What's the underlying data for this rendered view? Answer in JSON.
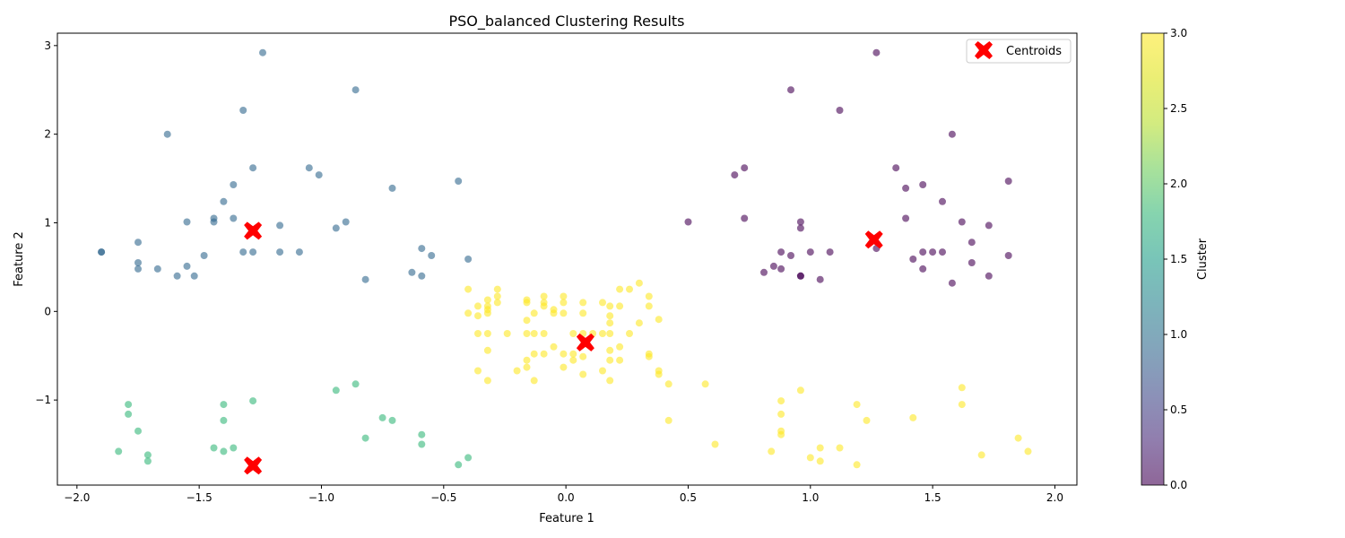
{
  "chart_data": {
    "type": "scatter",
    "title": "PSO_balanced Clustering Results",
    "xlabel": "Feature 1",
    "ylabel": "Feature 2",
    "xlim": [
      -2.08,
      2.09
    ],
    "ylim": [
      -1.96,
      3.14
    ],
    "x_ticks": [
      -2.0,
      -1.5,
      -1.0,
      -0.5,
      0.0,
      0.5,
      1.0,
      1.5,
      2.0
    ],
    "x_tick_labels": [
      "−2.0",
      "−1.5",
      "−1.0",
      "−0.5",
      "0.0",
      "0.5",
      "1.0",
      "1.5",
      "2.0"
    ],
    "y_ticks": [
      -1,
      0,
      1,
      2,
      3
    ],
    "y_tick_labels": [
      "−1",
      "0",
      "1",
      "2",
      "3"
    ],
    "grid": false,
    "legend": {
      "position": "top-right",
      "entries": [
        "Centroids"
      ]
    },
    "colorbar": {
      "label": "Cluster",
      "range": [
        0.0,
        3.0
      ],
      "ticks": [
        0.0,
        0.5,
        1.0,
        1.5,
        2.0,
        2.5,
        3.0
      ],
      "tick_labels": [
        "0.0",
        "0.5",
        "1.0",
        "1.5",
        "2.0",
        "2.5",
        "3.0"
      ],
      "colormap": "viridis"
    },
    "marker_alpha": 0.6,
    "cluster_colors": [
      "#440154",
      "#31688e",
      "#35b779",
      "#fde725"
    ],
    "centroid_color": "#ff0000",
    "series": [
      {
        "cluster": 0,
        "points": [
          [
            0.5,
            1.01
          ],
          [
            0.69,
            1.54
          ],
          [
            0.73,
            1.62
          ],
          [
            0.73,
            1.05
          ],
          [
            0.81,
            0.44
          ],
          [
            0.85,
            0.51
          ],
          [
            0.88,
            0.67
          ],
          [
            0.88,
            0.48
          ],
          [
            0.92,
            2.5
          ],
          [
            0.92,
            0.63
          ],
          [
            0.96,
            1.01
          ],
          [
            0.96,
            0.94
          ],
          [
            0.96,
            0.4
          ],
          [
            0.96,
            0.4
          ],
          [
            1.0,
            0.67
          ],
          [
            1.04,
            0.36
          ],
          [
            1.08,
            0.67
          ],
          [
            1.12,
            2.27
          ],
          [
            1.27,
            2.92
          ],
          [
            1.27,
            0.71
          ],
          [
            1.35,
            1.62
          ],
          [
            1.39,
            1.39
          ],
          [
            1.39,
            1.05
          ],
          [
            1.42,
            0.59
          ],
          [
            1.46,
            1.43
          ],
          [
            1.46,
            0.67
          ],
          [
            1.46,
            0.48
          ],
          [
            1.5,
            0.67
          ],
          [
            1.54,
            1.24
          ],
          [
            1.54,
            0.67
          ],
          [
            1.58,
            2.0
          ],
          [
            1.58,
            0.32
          ],
          [
            1.62,
            1.01
          ],
          [
            1.66,
            0.78
          ],
          [
            1.66,
            0.55
          ],
          [
            1.73,
            0.97
          ],
          [
            1.73,
            0.4
          ],
          [
            1.81,
            1.47
          ],
          [
            1.81,
            0.63
          ]
        ]
      },
      {
        "cluster": 1,
        "points": [
          [
            -1.9,
            0.67
          ],
          [
            -1.9,
            0.67
          ],
          [
            -1.75,
            0.78
          ],
          [
            -1.75,
            0.55
          ],
          [
            -1.75,
            0.48
          ],
          [
            -1.67,
            0.48
          ],
          [
            -1.63,
            2.0
          ],
          [
            -1.59,
            0.4
          ],
          [
            -1.55,
            1.01
          ],
          [
            -1.55,
            0.51
          ],
          [
            -1.52,
            0.4
          ],
          [
            -1.48,
            0.63
          ],
          [
            -1.44,
            1.05
          ],
          [
            -1.44,
            1.01
          ],
          [
            -1.4,
            1.24
          ],
          [
            -1.36,
            1.43
          ],
          [
            -1.36,
            1.05
          ],
          [
            -1.32,
            2.27
          ],
          [
            -1.32,
            0.67
          ],
          [
            -1.28,
            1.62
          ],
          [
            -1.28,
            0.67
          ],
          [
            -1.24,
            2.92
          ],
          [
            -1.17,
            0.97
          ],
          [
            -1.17,
            0.67
          ],
          [
            -1.09,
            0.67
          ],
          [
            -1.05,
            1.62
          ],
          [
            -1.01,
            1.54
          ],
          [
            -0.94,
            0.94
          ],
          [
            -0.9,
            1.01
          ],
          [
            -0.86,
            2.5
          ],
          [
            -0.82,
            0.36
          ],
          [
            -0.71,
            1.39
          ],
          [
            -0.63,
            0.44
          ],
          [
            -0.59,
            0.71
          ],
          [
            -0.59,
            0.4
          ],
          [
            -0.55,
            0.63
          ],
          [
            -0.44,
            1.47
          ],
          [
            -0.4,
            0.59
          ]
        ]
      },
      {
        "cluster": 2,
        "points": [
          [
            -1.83,
            -1.58
          ],
          [
            -1.79,
            -1.05
          ],
          [
            -1.79,
            -1.16
          ],
          [
            -1.75,
            -1.35
          ],
          [
            -1.71,
            -1.62
          ],
          [
            -1.71,
            -1.69
          ],
          [
            -1.44,
            -1.54
          ],
          [
            -1.4,
            -1.05
          ],
          [
            -1.4,
            -1.23
          ],
          [
            -1.4,
            -1.58
          ],
          [
            -1.36,
            -1.54
          ],
          [
            -1.28,
            -1.01
          ],
          [
            -0.94,
            -0.89
          ],
          [
            -0.86,
            -0.82
          ],
          [
            -0.82,
            -1.43
          ],
          [
            -0.75,
            -1.2
          ],
          [
            -0.71,
            -1.23
          ],
          [
            -0.59,
            -1.39
          ],
          [
            -0.59,
            -1.5
          ],
          [
            -0.44,
            -1.73
          ],
          [
            -0.4,
            -1.65
          ]
        ]
      },
      {
        "cluster": 3,
        "points": [
          [
            -0.4,
            0.25
          ],
          [
            -0.4,
            -0.02
          ],
          [
            -0.36,
            0.06
          ],
          [
            -0.36,
            -0.05
          ],
          [
            -0.36,
            -0.25
          ],
          [
            -0.36,
            -0.67
          ],
          [
            -0.32,
            0.13
          ],
          [
            -0.32,
            0.06
          ],
          [
            -0.32,
            0.02
          ],
          [
            -0.32,
            -0.02
          ],
          [
            -0.32,
            -0.25
          ],
          [
            -0.32,
            -0.44
          ],
          [
            -0.32,
            -0.78
          ],
          [
            -0.28,
            0.25
          ],
          [
            -0.28,
            0.17
          ],
          [
            -0.28,
            0.1
          ],
          [
            -0.24,
            -0.25
          ],
          [
            -0.2,
            -0.67
          ],
          [
            -0.16,
            0.13
          ],
          [
            -0.16,
            0.1
          ],
          [
            -0.16,
            -0.1
          ],
          [
            -0.16,
            -0.25
          ],
          [
            -0.16,
            -0.55
          ],
          [
            -0.16,
            -0.63
          ],
          [
            -0.13,
            -0.02
          ],
          [
            -0.13,
            -0.25
          ],
          [
            -0.13,
            -0.48
          ],
          [
            -0.13,
            -0.78
          ],
          [
            -0.09,
            0.17
          ],
          [
            -0.09,
            0.1
          ],
          [
            -0.09,
            0.06
          ],
          [
            -0.09,
            -0.25
          ],
          [
            -0.09,
            -0.48
          ],
          [
            -0.05,
            0.02
          ],
          [
            -0.05,
            -0.02
          ],
          [
            -0.05,
            -0.4
          ],
          [
            -0.01,
            0.17
          ],
          [
            -0.01,
            0.1
          ],
          [
            -0.01,
            -0.02
          ],
          [
            -0.01,
            -0.48
          ],
          [
            -0.01,
            -0.63
          ],
          [
            0.03,
            -0.25
          ],
          [
            0.03,
            -0.48
          ],
          [
            0.03,
            -0.55
          ],
          [
            0.07,
            0.1
          ],
          [
            0.07,
            -0.02
          ],
          [
            0.07,
            -0.25
          ],
          [
            0.07,
            -0.51
          ],
          [
            0.07,
            -0.71
          ],
          [
            0.11,
            -0.25
          ],
          [
            0.15,
            0.1
          ],
          [
            0.15,
            -0.25
          ],
          [
            0.15,
            -0.67
          ],
          [
            0.18,
            0.06
          ],
          [
            0.18,
            -0.05
          ],
          [
            0.18,
            -0.13
          ],
          [
            0.18,
            -0.25
          ],
          [
            0.18,
            -0.44
          ],
          [
            0.18,
            -0.55
          ],
          [
            0.18,
            -0.78
          ],
          [
            0.22,
            0.25
          ],
          [
            0.22,
            0.06
          ],
          [
            0.22,
            -0.4
          ],
          [
            0.22,
            -0.55
          ],
          [
            0.26,
            0.25
          ],
          [
            0.26,
            -0.25
          ],
          [
            0.3,
            0.32
          ],
          [
            0.3,
            -0.13
          ],
          [
            0.34,
            0.17
          ],
          [
            0.34,
            0.06
          ],
          [
            0.34,
            -0.48
          ],
          [
            0.34,
            -0.51
          ],
          [
            0.38,
            -0.09
          ],
          [
            0.38,
            -0.67
          ],
          [
            0.38,
            -0.71
          ],
          [
            0.42,
            -0.82
          ],
          [
            0.42,
            -1.23
          ],
          [
            0.57,
            -0.82
          ],
          [
            0.61,
            -1.5
          ],
          [
            0.84,
            -1.58
          ],
          [
            0.88,
            -1.01
          ],
          [
            0.88,
            -1.16
          ],
          [
            0.88,
            -1.35
          ],
          [
            0.88,
            -1.39
          ],
          [
            0.96,
            -0.89
          ],
          [
            1.0,
            -1.65
          ],
          [
            1.04,
            -1.54
          ],
          [
            1.04,
            -1.69
          ],
          [
            1.12,
            -1.54
          ],
          [
            1.19,
            -1.05
          ],
          [
            1.19,
            -1.73
          ],
          [
            1.23,
            -1.23
          ],
          [
            1.42,
            -1.2
          ],
          [
            1.62,
            -0.86
          ],
          [
            1.62,
            -1.05
          ],
          [
            1.7,
            -1.62
          ],
          [
            1.85,
            -1.43
          ],
          [
            1.89,
            -1.58
          ]
        ]
      }
    ],
    "centroids": [
      [
        -1.28,
        0.91
      ],
      [
        0.08,
        -0.35
      ],
      [
        1.26,
        0.81
      ],
      [
        -1.28,
        -1.74
      ]
    ]
  }
}
